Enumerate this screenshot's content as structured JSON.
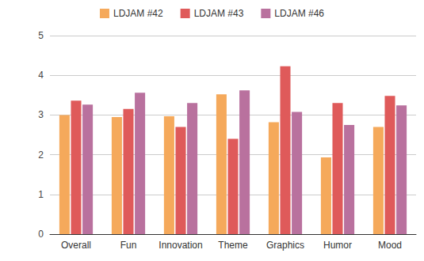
{
  "chart_data": {
    "type": "bar",
    "categories": [
      "Overall",
      "Fun",
      "Innovation",
      "Theme",
      "Graphics",
      "Humor",
      "Mood"
    ],
    "series": [
      {
        "name": "LDJAM #42",
        "color": "#f5a95b",
        "values": [
          3.0,
          2.95,
          2.97,
          3.52,
          2.82,
          1.93,
          2.7
        ]
      },
      {
        "name": "LDJAM #43",
        "color": "#df5a5a",
        "values": [
          3.36,
          3.15,
          2.7,
          2.4,
          4.23,
          3.3,
          3.48
        ]
      },
      {
        "name": "LDJAM #46",
        "color": "#b9719e",
        "values": [
          3.26,
          3.56,
          3.3,
          3.62,
          3.08,
          2.75,
          3.24
        ]
      }
    ],
    "ylim": [
      0,
      5
    ],
    "yticks": [
      0,
      1,
      2,
      3,
      4,
      5
    ],
    "grid": true,
    "legend": "top"
  }
}
